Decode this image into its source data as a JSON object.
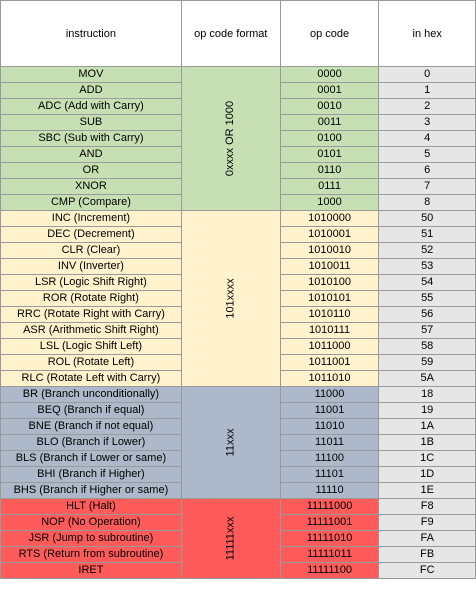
{
  "headers": [
    "instruction",
    "op code format",
    "op code",
    "in  hex"
  ],
  "groups": [
    {
      "format": "0xxxx OR  1000",
      "color": "#c6e0b4",
      "rows": [
        [
          "MOV",
          "0000",
          "0"
        ],
        [
          "ADD",
          "0001",
          "1"
        ],
        [
          "ADC (Add with Carry)",
          "0010",
          "2"
        ],
        [
          "SUB",
          "0011",
          "3"
        ],
        [
          "SBC (Sub with Carry)",
          "0100",
          "4"
        ],
        [
          "AND",
          "0101",
          "5"
        ],
        [
          "OR",
          "0110",
          "6"
        ],
        [
          "XNOR",
          "0111",
          "7"
        ],
        [
          "CMP (Compare)",
          "1000",
          "8"
        ]
      ]
    },
    {
      "format": "101xxxx",
      "color": "#fff2cc",
      "rows": [
        [
          "INC (Increment)",
          "1010000",
          "50"
        ],
        [
          "DEC (Decrement)",
          "1010001",
          "51"
        ],
        [
          "CLR (Clear)",
          "1010010",
          "52"
        ],
        [
          "INV (Inverter)",
          "1010011",
          "53"
        ],
        [
          "LSR (Logic Shift Right)",
          "1010100",
          "54"
        ],
        [
          "ROR (Rotate Right)",
          "1010101",
          "55"
        ],
        [
          "RRC (Rotate Right with Carry)",
          "1010110",
          "56"
        ],
        [
          "ASR (Arithmetic Shift Right)",
          "1010111",
          "57"
        ],
        [
          "LSL (Logic Shift Left)",
          "1011000",
          "58"
        ],
        [
          "ROL (Rotate Left)",
          "1011001",
          "59"
        ],
        [
          "RLC (Rotate Left with Carry)",
          "1011010",
          "5A"
        ]
      ]
    },
    {
      "format": "11xxx",
      "color": "#adb9ca",
      "rows": [
        [
          "BR (Branch unconditionally)",
          "11000",
          "18"
        ],
        [
          "BEQ (Branch if equal)",
          "11001",
          "19"
        ],
        [
          "BNE (Branch if not equal)",
          "11010",
          "1A"
        ],
        [
          "BLO (Branch if Lower)",
          "11011",
          "1B"
        ],
        [
          "BLS (Branch if Lower or same)",
          "11100",
          "1C"
        ],
        [
          "BHI (Branch if Higher)",
          "11101",
          "1D"
        ],
        [
          "BHS (Branch if Higher or same)",
          "11110",
          "1E"
        ]
      ]
    },
    {
      "format": "11111xxx",
      "color": "#ff5b5b",
      "rows": [
        [
          "HLT (Halt)",
          "11111000",
          "F8"
        ],
        [
          "NOP (No Operation)",
          "11111001",
          "F9"
        ],
        [
          "JSR (Jump to subroutine)",
          "11111010",
          "FA"
        ],
        [
          "RTS (Return from subroutine)",
          "11111011",
          "FB"
        ],
        [
          "IRET",
          "11111100",
          "FC"
        ]
      ]
    }
  ]
}
